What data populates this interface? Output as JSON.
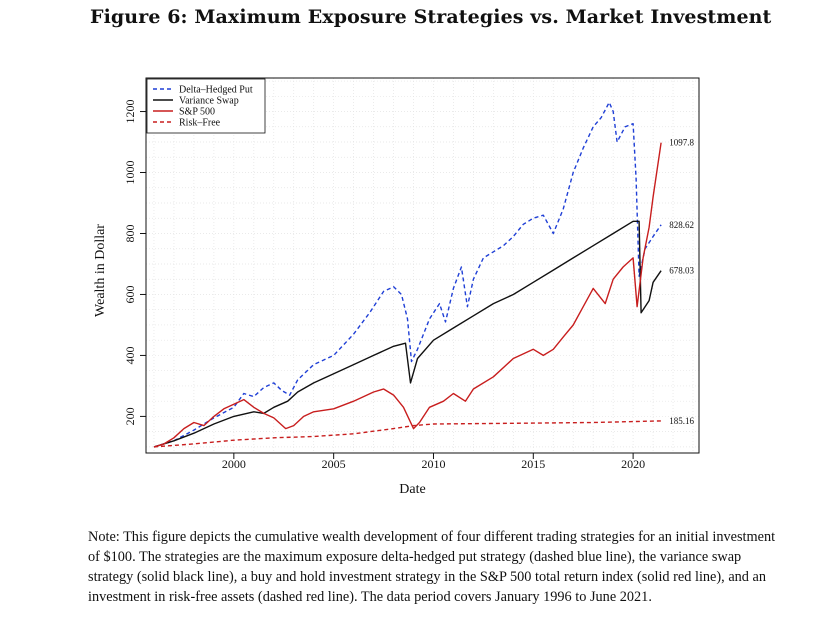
{
  "figure": {
    "title": "Figure 6: Maximum Exposure Strategies vs. Market Investment",
    "note": "Note: This figure depicts the cumulative wealth development of four different trading strategies for an initial investment of $100. The strategies are the maximum exposure delta-hedged put strategy (dashed blue line), the variance swap strategy (solid black line), a buy and hold investment strategy in the S&P 500 total return index (solid red line), and an investment in risk-free assets (dashed red line). The data period covers January 1996 to June 2021."
  },
  "chart_data": {
    "type": "line",
    "xlabel": "Date",
    "ylabel": "Wealth in Dollar",
    "xlim": [
      1995.6,
      2023.3
    ],
    "ylim": [
      80,
      1310
    ],
    "x_ticks": [
      2000,
      2005,
      2010,
      2015,
      2020
    ],
    "y_ticks": [
      200,
      400,
      600,
      800,
      1000,
      1200
    ],
    "grid": true,
    "legend_position": "top-left",
    "colors": {
      "blue": "#1f3fd6",
      "black": "#111111",
      "red": "#c81e1e"
    },
    "series": [
      {
        "name": "Delta–Hedged Put",
        "style": "dashed",
        "color": "#1f3fd6",
        "end_label": "828.62",
        "points": [
          [
            1996.0,
            100
          ],
          [
            1997.0,
            120
          ],
          [
            1998.0,
            155
          ],
          [
            1999.0,
            195
          ],
          [
            2000.0,
            230
          ],
          [
            2000.5,
            275
          ],
          [
            2001.0,
            265
          ],
          [
            2001.5,
            295
          ],
          [
            2002.0,
            310
          ],
          [
            2002.4,
            285
          ],
          [
            2002.8,
            270
          ],
          [
            2003.2,
            320
          ],
          [
            2004.0,
            370
          ],
          [
            2005.0,
            400
          ],
          [
            2006.0,
            470
          ],
          [
            2006.8,
            540
          ],
          [
            2007.5,
            610
          ],
          [
            2008.0,
            625
          ],
          [
            2008.4,
            600
          ],
          [
            2008.7,
            520
          ],
          [
            2008.9,
            380
          ],
          [
            2009.2,
            420
          ],
          [
            2009.8,
            520
          ],
          [
            2010.3,
            570
          ],
          [
            2010.6,
            510
          ],
          [
            2011.0,
            620
          ],
          [
            2011.4,
            690
          ],
          [
            2011.7,
            560
          ],
          [
            2012.0,
            650
          ],
          [
            2012.5,
            720
          ],
          [
            2013.0,
            740
          ],
          [
            2013.5,
            760
          ],
          [
            2014.0,
            790
          ],
          [
            2014.5,
            830
          ],
          [
            2015.0,
            850
          ],
          [
            2015.5,
            860
          ],
          [
            2016.0,
            800
          ],
          [
            2016.5,
            880
          ],
          [
            2017.0,
            1000
          ],
          [
            2017.5,
            1080
          ],
          [
            2018.0,
            1150
          ],
          [
            2018.4,
            1180
          ],
          [
            2018.8,
            1230
          ],
          [
            2019.0,
            1200
          ],
          [
            2019.2,
            1100
          ],
          [
            2019.6,
            1150
          ],
          [
            2020.0,
            1160
          ],
          [
            2020.15,
            980
          ],
          [
            2020.3,
            660
          ],
          [
            2020.6,
            750
          ],
          [
            2021.0,
            790
          ],
          [
            2021.4,
            828.62
          ]
        ]
      },
      {
        "name": "Variance Swap",
        "style": "solid",
        "color": "#111111",
        "end_label": "678.03",
        "points": [
          [
            1996.0,
            100
          ],
          [
            1997.0,
            120
          ],
          [
            1998.0,
            145
          ],
          [
            1999.0,
            175
          ],
          [
            2000.0,
            200
          ],
          [
            2001.0,
            215
          ],
          [
            2001.5,
            210
          ],
          [
            2002.0,
            230
          ],
          [
            2002.7,
            250
          ],
          [
            2003.2,
            280
          ],
          [
            2004.0,
            310
          ],
          [
            2005.0,
            340
          ],
          [
            2006.0,
            370
          ],
          [
            2007.0,
            400
          ],
          [
            2008.0,
            430
          ],
          [
            2008.6,
            440
          ],
          [
            2008.85,
            310
          ],
          [
            2009.2,
            390
          ],
          [
            2010.0,
            450
          ],
          [
            2011.0,
            490
          ],
          [
            2012.0,
            530
          ],
          [
            2013.0,
            570
          ],
          [
            2014.0,
            600
          ],
          [
            2015.0,
            640
          ],
          [
            2016.0,
            680
          ],
          [
            2017.0,
            720
          ],
          [
            2018.0,
            760
          ],
          [
            2019.0,
            800
          ],
          [
            2020.0,
            840
          ],
          [
            2020.3,
            840
          ],
          [
            2020.4,
            540
          ],
          [
            2020.8,
            580
          ],
          [
            2021.0,
            640
          ],
          [
            2021.4,
            678.03
          ]
        ]
      },
      {
        "name": "S&P 500",
        "style": "solid",
        "color": "#c81e1e",
        "end_label": "1097.8",
        "points": [
          [
            1996.0,
            100
          ],
          [
            1996.5,
            110
          ],
          [
            1997.0,
            130
          ],
          [
            1997.5,
            160
          ],
          [
            1998.0,
            180
          ],
          [
            1998.5,
            170
          ],
          [
            1999.0,
            200
          ],
          [
            1999.5,
            225
          ],
          [
            2000.0,
            240
          ],
          [
            2000.5,
            255
          ],
          [
            2001.0,
            230
          ],
          [
            2001.5,
            210
          ],
          [
            2002.0,
            195
          ],
          [
            2002.6,
            160
          ],
          [
            2003.0,
            170
          ],
          [
            2003.5,
            200
          ],
          [
            2004.0,
            215
          ],
          [
            2005.0,
            225
          ],
          [
            2006.0,
            250
          ],
          [
            2007.0,
            280
          ],
          [
            2007.5,
            290
          ],
          [
            2008.0,
            270
          ],
          [
            2008.5,
            230
          ],
          [
            2009.0,
            160
          ],
          [
            2009.3,
            180
          ],
          [
            2009.8,
            230
          ],
          [
            2010.5,
            250
          ],
          [
            2011.0,
            275
          ],
          [
            2011.6,
            250
          ],
          [
            2012.0,
            290
          ],
          [
            2013.0,
            330
          ],
          [
            2014.0,
            390
          ],
          [
            2015.0,
            420
          ],
          [
            2015.5,
            400
          ],
          [
            2016.0,
            420
          ],
          [
            2016.5,
            460
          ],
          [
            2017.0,
            500
          ],
          [
            2017.5,
            560
          ],
          [
            2018.0,
            620
          ],
          [
            2018.6,
            570
          ],
          [
            2019.0,
            650
          ],
          [
            2019.5,
            690
          ],
          [
            2020.0,
            720
          ],
          [
            2020.2,
            560
          ],
          [
            2020.5,
            720
          ],
          [
            2020.8,
            820
          ],
          [
            2021.0,
            920
          ],
          [
            2021.4,
            1097.8
          ]
        ]
      },
      {
        "name": "Risk–Free",
        "style": "dashed",
        "color": "#c81e1e",
        "end_label": "185.16",
        "points": [
          [
            1996.0,
            100
          ],
          [
            1998.0,
            110
          ],
          [
            2000.0,
            122
          ],
          [
            2002.0,
            130
          ],
          [
            2004.0,
            134
          ],
          [
            2006.0,
            143
          ],
          [
            2008.0,
            160
          ],
          [
            2009.0,
            170
          ],
          [
            2010.0,
            175
          ],
          [
            2015.0,
            178
          ],
          [
            2018.0,
            180
          ],
          [
            2021.4,
            185.16
          ]
        ]
      }
    ]
  }
}
